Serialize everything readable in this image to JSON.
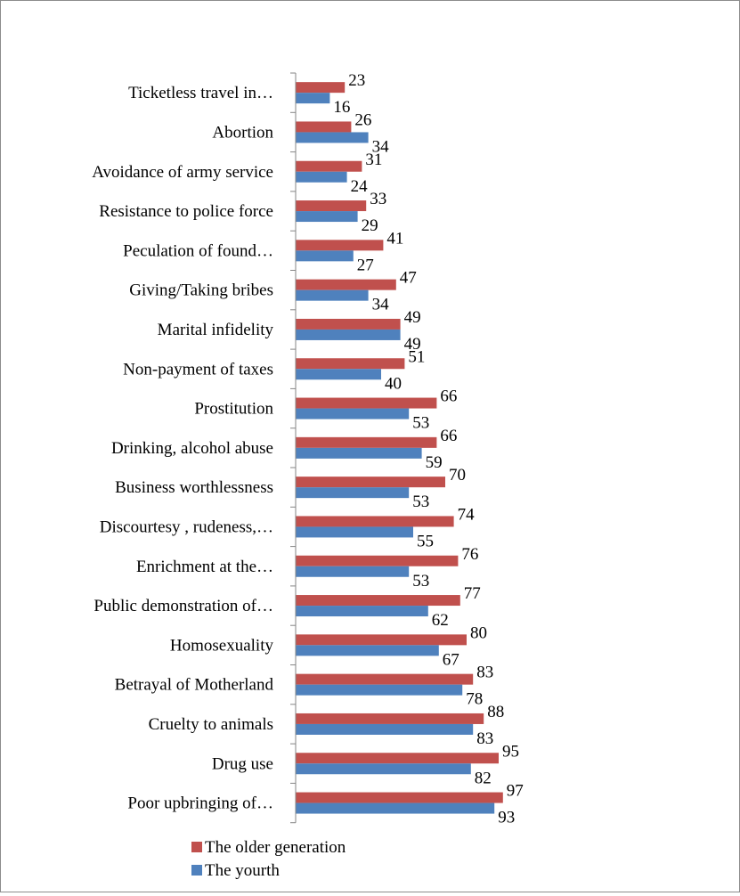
{
  "chart_data": {
    "type": "bar",
    "orientation": "horizontal",
    "title": "",
    "xlabel": "",
    "ylabel": "",
    "xlim": [
      0,
      100
    ],
    "grid": false,
    "legend_position": "bottom",
    "categories": [
      "Ticketless travel in…",
      "Abortion",
      "Avoidance of army service",
      "Resistance to police force",
      "Peculation of found…",
      "Giving/Taking bribes",
      "Marital infidelity",
      "Non-payment of taxes",
      "Prostitution",
      "Drinking, alcohol abuse",
      "Business worthlessness",
      "Discourtesy , rudeness,…",
      "Enrichment at the…",
      "Public demonstration of…",
      "Homosexuality",
      "Betrayal of Motherland",
      "Cruelty to animals",
      "Drug use",
      "Poor upbringing of…"
    ],
    "series": [
      {
        "name": "The older generation",
        "color": "#c0504d",
        "values": [
          23,
          26,
          31,
          33,
          41,
          47,
          49,
          51,
          66,
          66,
          70,
          74,
          76,
          77,
          80,
          83,
          88,
          95,
          97
        ]
      },
      {
        "name": "The yourth",
        "color": "#4f81bd",
        "values": [
          16,
          34,
          24,
          29,
          27,
          34,
          49,
          40,
          53,
          59,
          53,
          55,
          53,
          62,
          67,
          78,
          83,
          82,
          93
        ]
      }
    ]
  }
}
